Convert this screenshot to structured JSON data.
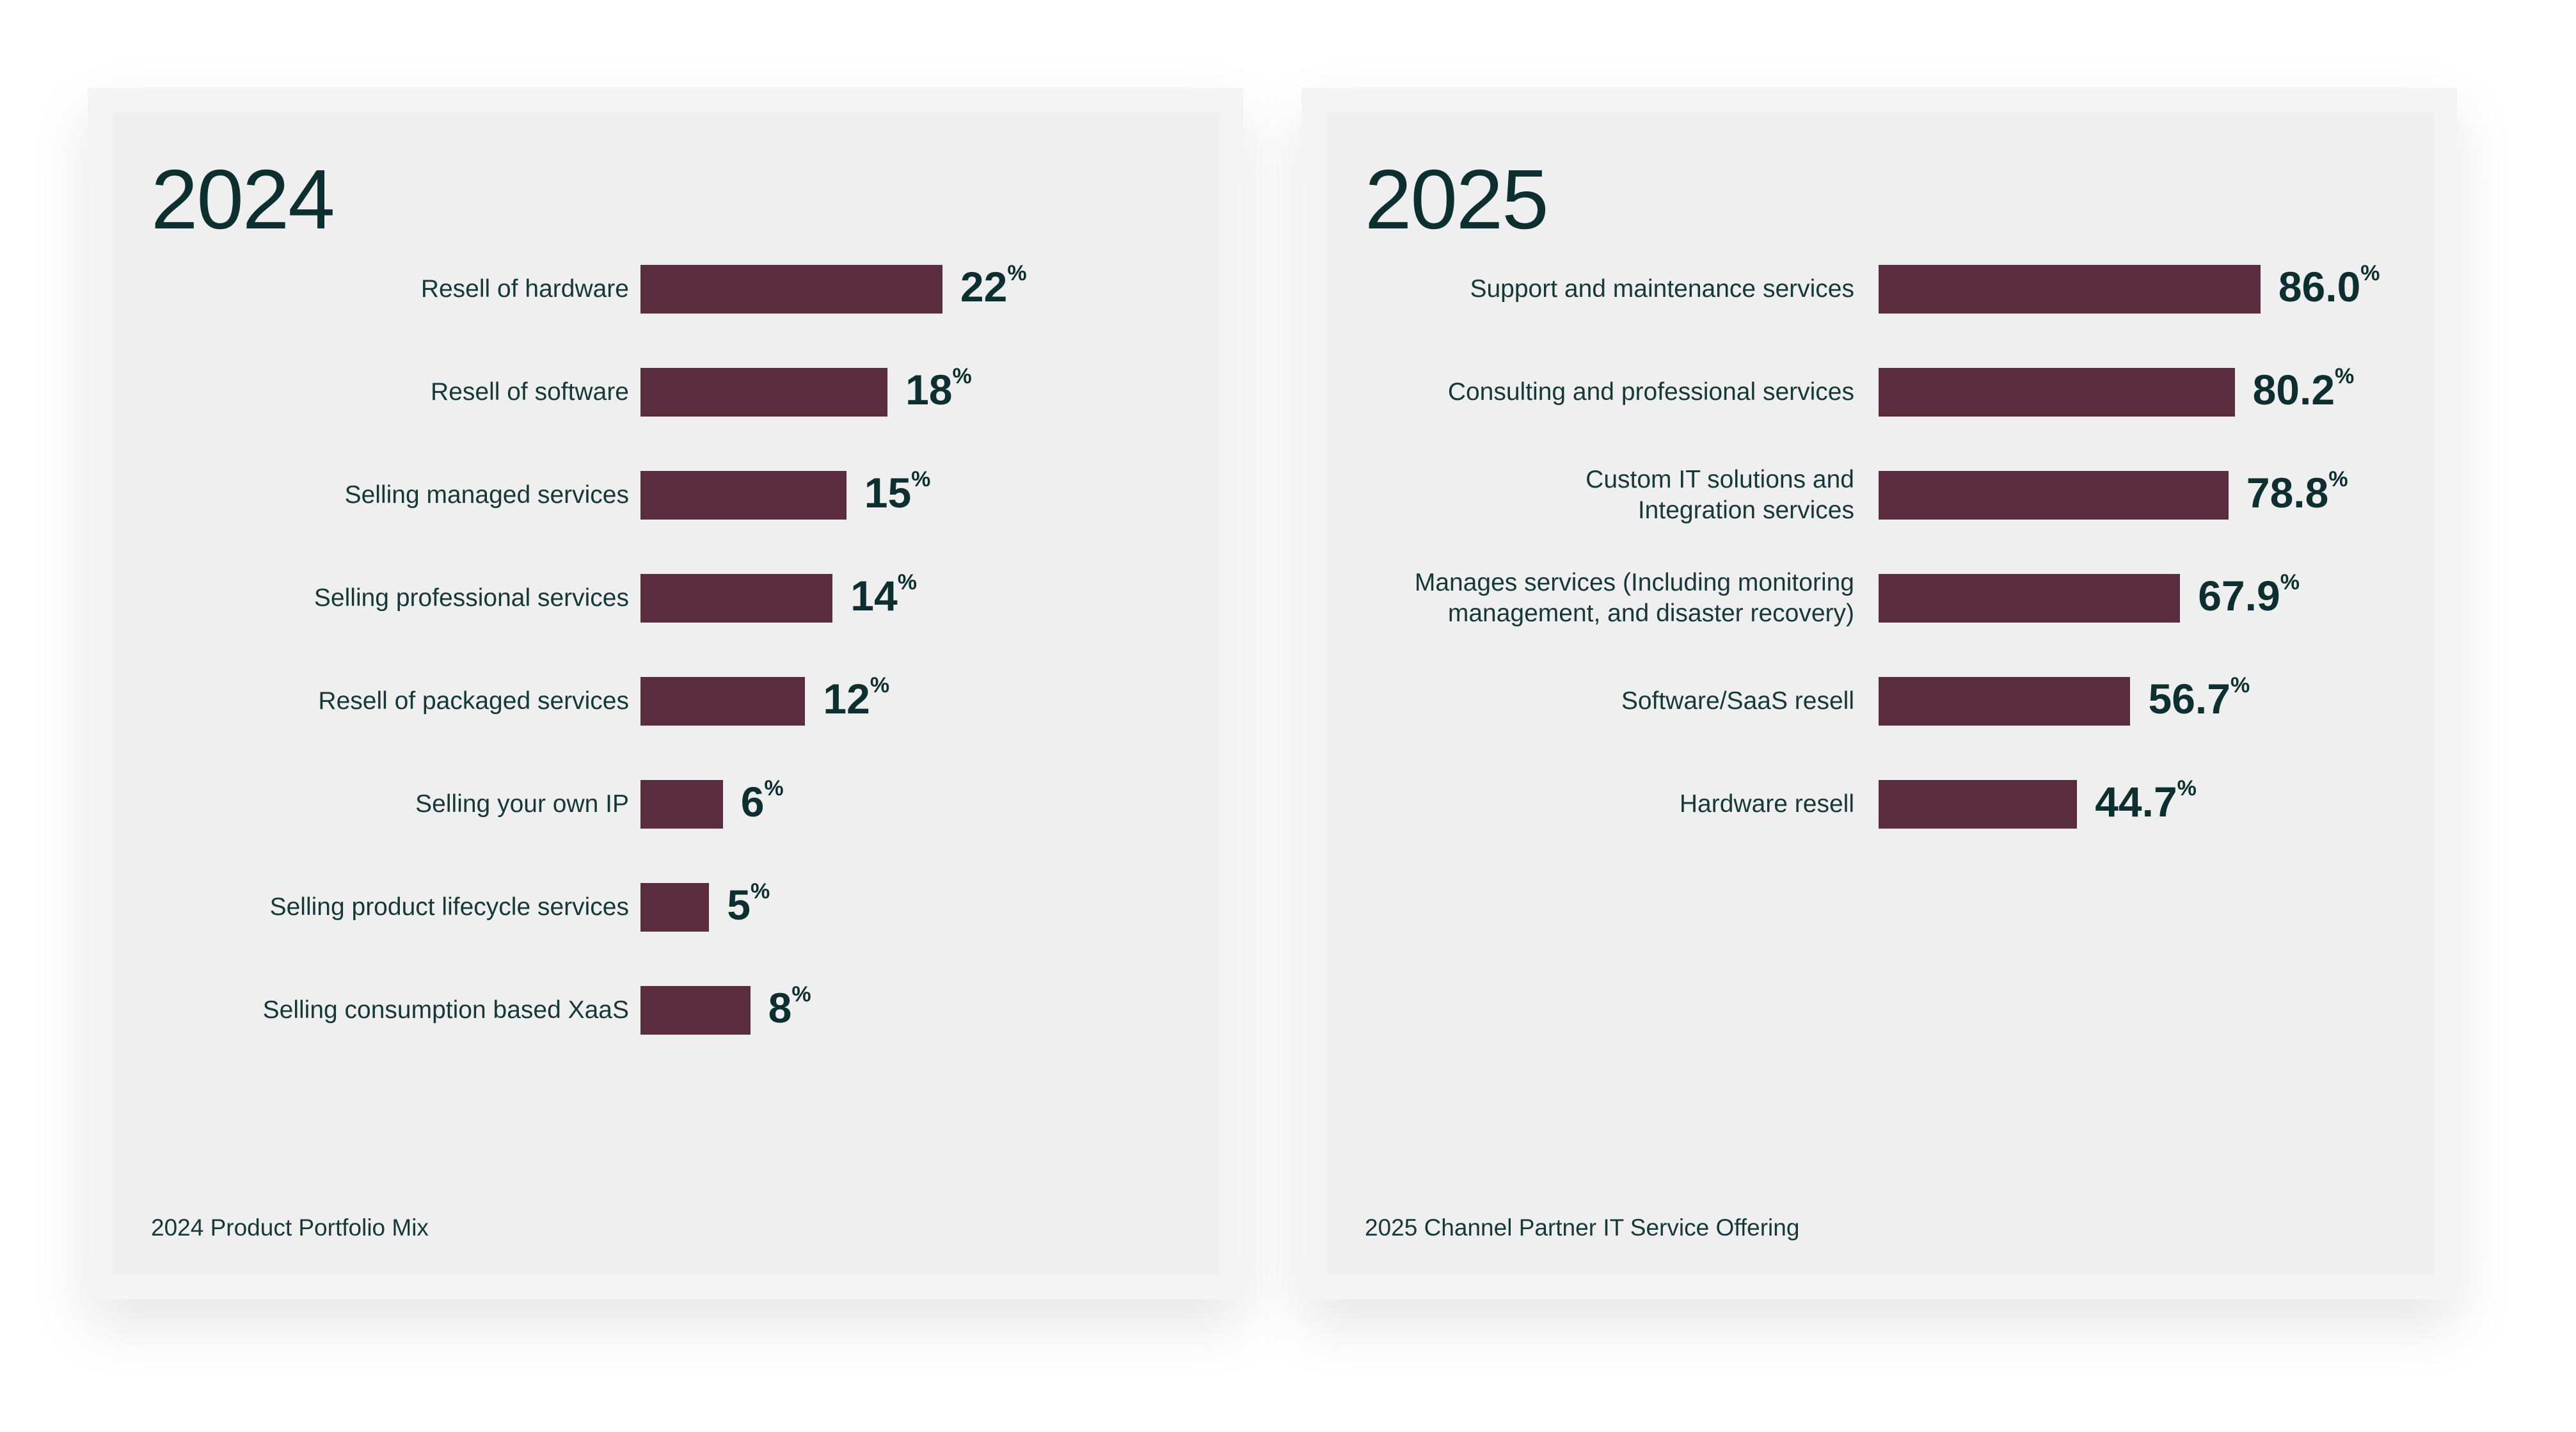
{
  "colors": {
    "bar": "#5a2d3e",
    "text": "#0d2f2f",
    "panel": "#efefef"
  },
  "chart_data": [
    {
      "type": "bar",
      "orientation": "horizontal",
      "title": "2024",
      "caption": "2024 Product Portfolio Mix",
      "unit": "%",
      "categories": [
        "Resell of hardware",
        "Resell of software",
        "Selling managed services",
        "Selling professional services",
        "Resell of packaged services",
        "Selling your own IP",
        "Selling product lifecycle services",
        "Selling consumption based XaaS"
      ],
      "values": [
        22,
        18,
        15,
        14,
        12,
        6,
        5,
        8
      ],
      "value_labels": [
        "22",
        "18",
        "15",
        "14",
        "12",
        "6",
        "5",
        "8"
      ],
      "xlim": [
        0,
        100
      ]
    },
    {
      "type": "bar",
      "orientation": "horizontal",
      "title": "2025",
      "caption": "2025 Channel Partner IT Service Offering",
      "unit": "%",
      "categories": [
        "Support and maintenance services",
        "Consulting and professional services",
        "Custom IT solutions and\nIntegration services",
        "Manages services (Including monitoring\nmanagement, and disaster recovery)",
        "Software/SaaS resell",
        "Hardware resell"
      ],
      "values": [
        86.0,
        80.2,
        78.8,
        67.9,
        56.7,
        44.7
      ],
      "value_labels": [
        "86.0",
        "80.2",
        "78.8",
        "67.9",
        "56.7",
        "44.7"
      ],
      "xlim": [
        0,
        100
      ]
    }
  ]
}
